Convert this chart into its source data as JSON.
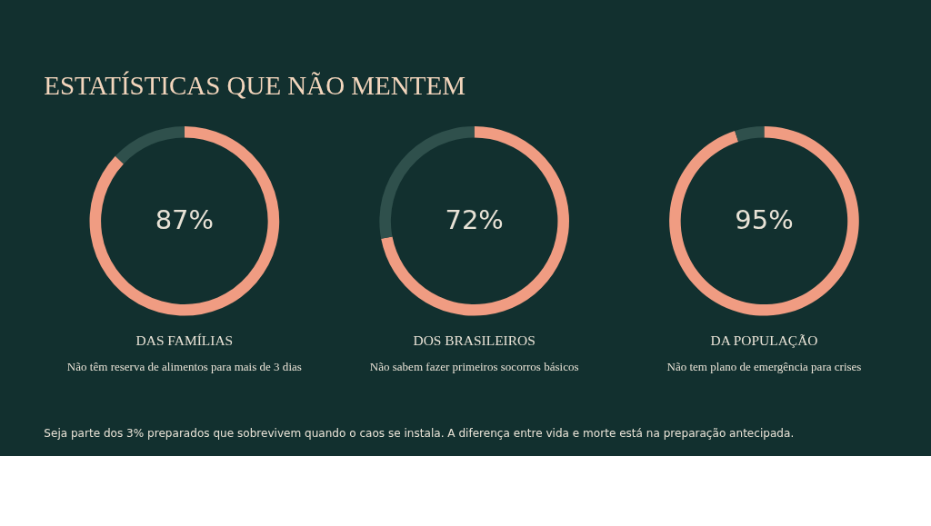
{
  "chart_data": [
    {
      "type": "other",
      "title": "ESTATÍSTICAS QUE NÃO MENTEM"
    },
    {
      "type": "donut",
      "title": "DAS FAMÍLIAS",
      "subtitle": "Não têm reserva de alimentos para mais de 3 dias",
      "categories": [
        null,
        null
      ],
      "values": [
        87,
        13
      ],
      "colors": [
        "#f09c82",
        "#2f504c"
      ],
      "value_labels": [
        "87%",
        null
      ]
    },
    {
      "type": "donut",
      "title": "DOS BRASILEIROS",
      "subtitle": "Não sabem fazer primeiros socorros básicos",
      "categories": [
        null,
        null
      ],
      "values": [
        72,
        28
      ],
      "colors": [
        "#f09c82",
        "#2f504c"
      ],
      "value_labels": [
        "72%",
        null
      ]
    },
    {
      "type": "donut",
      "title": "DA POPULAÇÃO",
      "subtitle": "Não tem plano de emergência para crises",
      "categories": [
        null,
        null
      ],
      "values": [
        95,
        5
      ],
      "colors": [
        "#f09c82",
        "#2f504c"
      ],
      "value_labels": [
        "95%",
        null
      ]
    },
    {
      "type": "other",
      "annotations": [
        "Seja parte dos 3% preparados que sobrevivem quando o caos se instala. A diferença entre vida e morte está na preparação antecipada."
      ]
    }
  ]
}
